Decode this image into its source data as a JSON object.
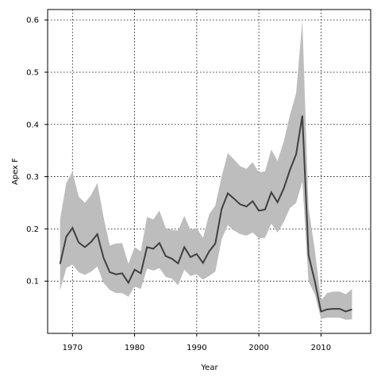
{
  "chart_data": {
    "type": "line",
    "xlabel": "Year",
    "ylabel": "Apex F",
    "xlim": [
      1966,
      2018
    ],
    "ylim": [
      0,
      0.62
    ],
    "grid": true,
    "xticks": [
      1970,
      1980,
      1990,
      2000,
      2010
    ],
    "yticks": [
      0.1,
      0.2,
      0.3,
      0.4,
      0.5,
      0.6
    ],
    "line_color": "#404040",
    "band_color": "#bdbdbd",
    "x": [
      1968,
      1969,
      1970,
      1971,
      1972,
      1973,
      1974,
      1975,
      1976,
      1977,
      1978,
      1979,
      1980,
      1981,
      1982,
      1983,
      1984,
      1985,
      1986,
      1987,
      1988,
      1989,
      1990,
      1991,
      1992,
      1993,
      1994,
      1995,
      1996,
      1997,
      1998,
      1999,
      2000,
      2001,
      2002,
      2003,
      2004,
      2005,
      2006,
      2007,
      2008,
      2009,
      2010,
      2011,
      2012,
      2013,
      2014,
      2015
    ],
    "series": [
      {
        "values": [
          0.133,
          0.185,
          0.202,
          0.174,
          0.165,
          0.175,
          0.19,
          0.145,
          0.117,
          0.113,
          0.115,
          0.097,
          0.122,
          0.115,
          0.165,
          0.162,
          0.173,
          0.148,
          0.143,
          0.134,
          0.165,
          0.146,
          0.152,
          0.135,
          0.157,
          0.172,
          0.238,
          0.268,
          0.258,
          0.247,
          0.243,
          0.253,
          0.235,
          0.237,
          0.27,
          0.251,
          0.277,
          0.313,
          0.343,
          0.417,
          0.15,
          0.1,
          0.042,
          0.046,
          0.047,
          0.047,
          0.042,
          0.046
        ],
        "lower": [
          0.082,
          0.125,
          0.132,
          0.117,
          0.112,
          0.118,
          0.128,
          0.097,
          0.083,
          0.077,
          0.077,
          0.07,
          0.09,
          0.085,
          0.124,
          0.12,
          0.125,
          0.108,
          0.105,
          0.092,
          0.122,
          0.11,
          0.113,
          0.103,
          0.11,
          0.118,
          0.18,
          0.207,
          0.197,
          0.19,
          0.187,
          0.193,
          0.182,
          0.183,
          0.21,
          0.193,
          0.213,
          0.24,
          0.25,
          0.29,
          0.1,
          0.075,
          0.028,
          0.03,
          0.03,
          0.03,
          0.026,
          0.027
        ],
        "upper": [
          0.218,
          0.288,
          0.31,
          0.262,
          0.25,
          0.265,
          0.288,
          0.223,
          0.168,
          0.172,
          0.173,
          0.133,
          0.165,
          0.157,
          0.223,
          0.218,
          0.235,
          0.202,
          0.198,
          0.197,
          0.225,
          0.198,
          0.202,
          0.183,
          0.228,
          0.245,
          0.3,
          0.345,
          0.333,
          0.32,
          0.315,
          0.328,
          0.308,
          0.31,
          0.352,
          0.33,
          0.367,
          0.418,
          0.46,
          0.6,
          0.24,
          0.16,
          0.063,
          0.077,
          0.08,
          0.08,
          0.075,
          0.085
        ]
      }
    ]
  }
}
